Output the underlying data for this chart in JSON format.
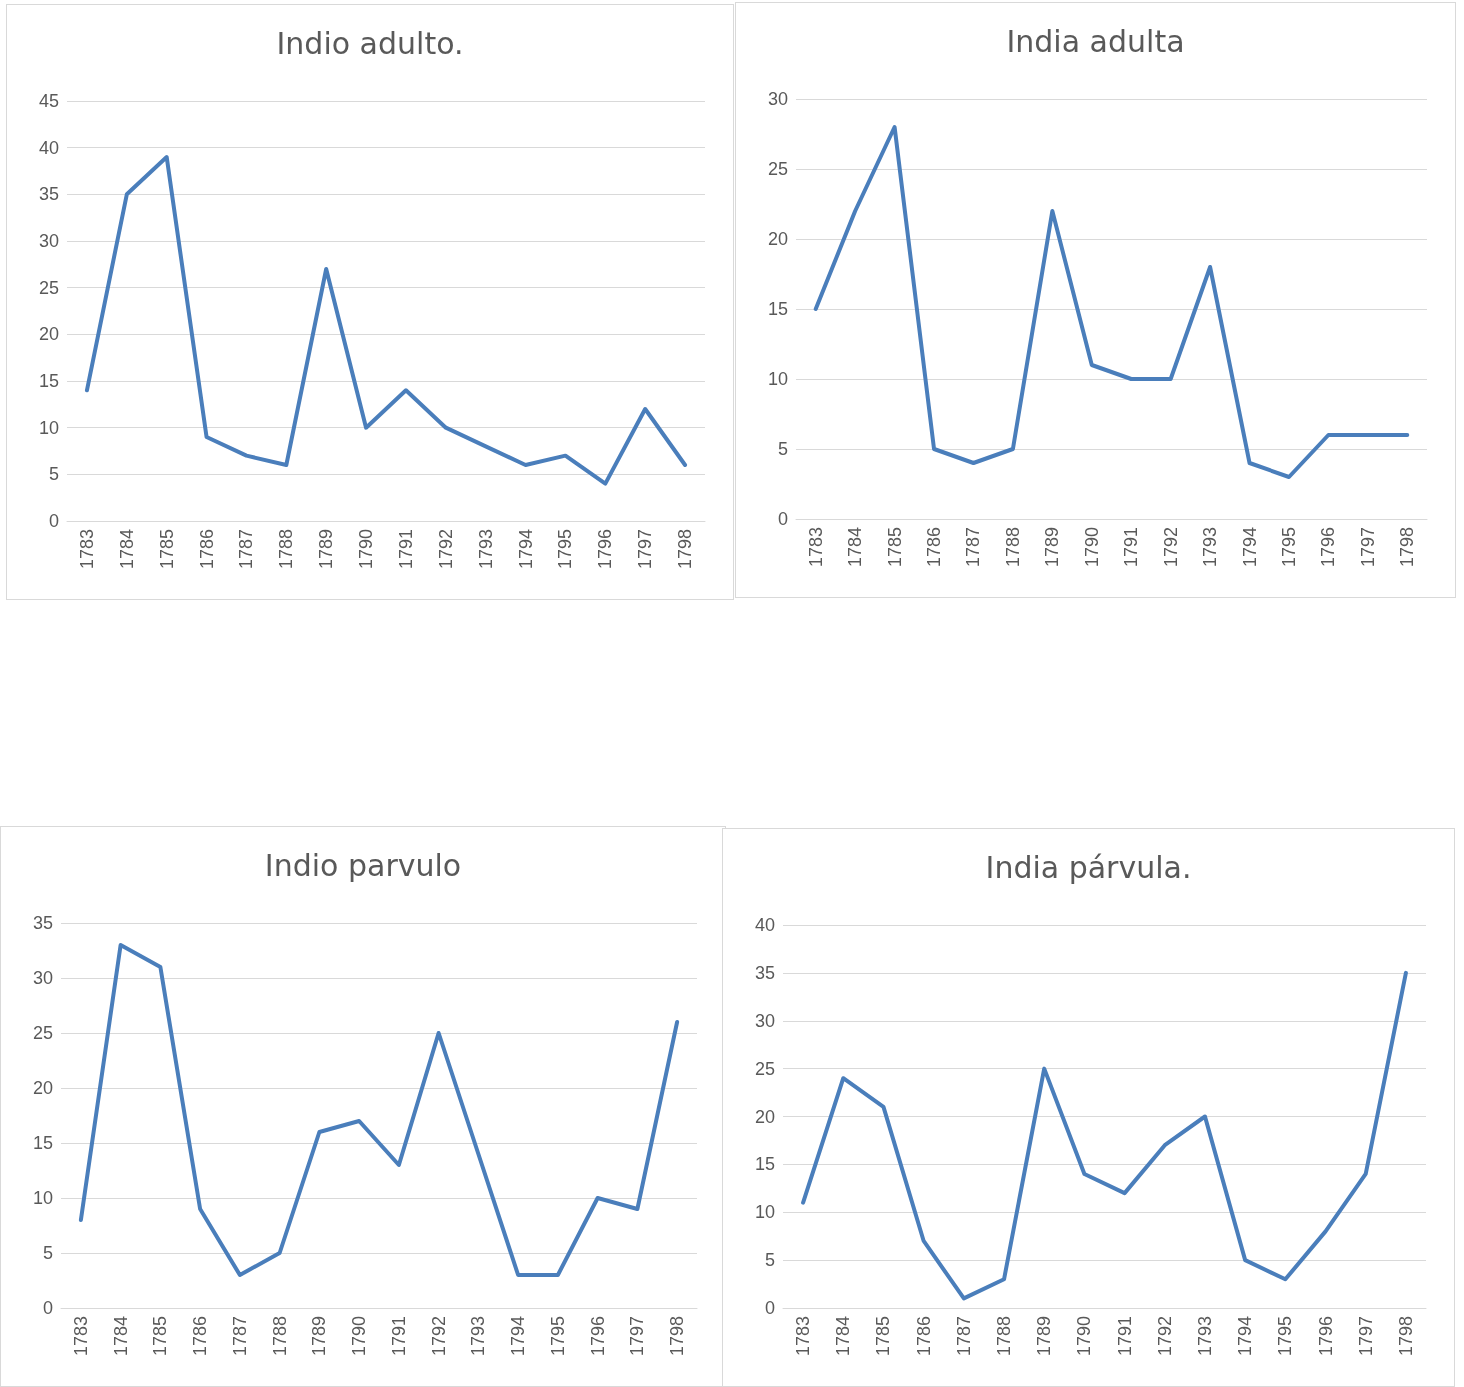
{
  "chart_data": [
    {
      "type": "line",
      "title": "Indio adulto.",
      "categories": [
        "1783",
        "1784",
        "1785",
        "1786",
        "1787",
        "1788",
        "1789",
        "1790",
        "1791",
        "1792",
        "1793",
        "1794",
        "1795",
        "1796",
        "1797",
        "1798"
      ],
      "series": [
        {
          "color": "#4a7ebb",
          "values": [
            14,
            35,
            39,
            9,
            7,
            6,
            27,
            10,
            14,
            10,
            8,
            6,
            7,
            4,
            12,
            6
          ]
        }
      ],
      "ylim": [
        0,
        45
      ],
      "yticks": [
        0,
        5,
        10,
        15,
        20,
        25,
        30,
        35,
        40,
        45
      ],
      "grid": "y",
      "marker": "none",
      "line_style": "solid"
    },
    {
      "type": "line",
      "title": "India adulta",
      "categories": [
        "1783",
        "1784",
        "1785",
        "1786",
        "1787",
        "1788",
        "1789",
        "1790",
        "1791",
        "1792",
        "1793",
        "1794",
        "1795",
        "1796",
        "1797",
        "1798"
      ],
      "series": [
        {
          "color": "#4a7ebb",
          "values": [
            15,
            22,
            28,
            5,
            4,
            5,
            22,
            11,
            10,
            10,
            18,
            4,
            3,
            6,
            6,
            6
          ]
        }
      ],
      "ylim": [
        0,
        30
      ],
      "yticks": [
        0,
        5,
        10,
        15,
        20,
        25,
        30
      ],
      "grid": "y",
      "marker": "none",
      "line_style": "solid"
    },
    {
      "type": "line",
      "title": "Indio parvulo",
      "categories": [
        "1783",
        "1784",
        "1785",
        "1786",
        "1787",
        "1788",
        "1789",
        "1790",
        "1791",
        "1792",
        "1793",
        "1794",
        "1795",
        "1796",
        "1797",
        "1798"
      ],
      "series": [
        {
          "color": "#4a7ebb",
          "values": [
            8,
            33,
            31,
            9,
            3,
            5,
            16,
            17,
            13,
            25,
            14,
            3,
            3,
            10,
            9,
            26
          ]
        }
      ],
      "ylim": [
        0,
        35
      ],
      "yticks": [
        0,
        5,
        10,
        15,
        20,
        25,
        30,
        35
      ],
      "grid": "y",
      "marker": "none",
      "line_style": "solid"
    },
    {
      "type": "line",
      "title": "India párvula.",
      "categories": [
        "1783",
        "1784",
        "1785",
        "1786",
        "1787",
        "1788",
        "1789",
        "1790",
        "1791",
        "1792",
        "1793",
        "1794",
        "1795",
        "1796",
        "1797",
        "1798"
      ],
      "series": [
        {
          "color": "#4a7ebb",
          "values": [
            11,
            24,
            21,
            7,
            1,
            3,
            25,
            14,
            12,
            17,
            20,
            5,
            3,
            8,
            14,
            35
          ]
        }
      ],
      "ylim": [
        0,
        40
      ],
      "yticks": [
        0,
        5,
        10,
        15,
        20,
        25,
        30,
        35,
        40
      ],
      "grid": "y",
      "marker": "none",
      "line_style": "solid"
    }
  ]
}
